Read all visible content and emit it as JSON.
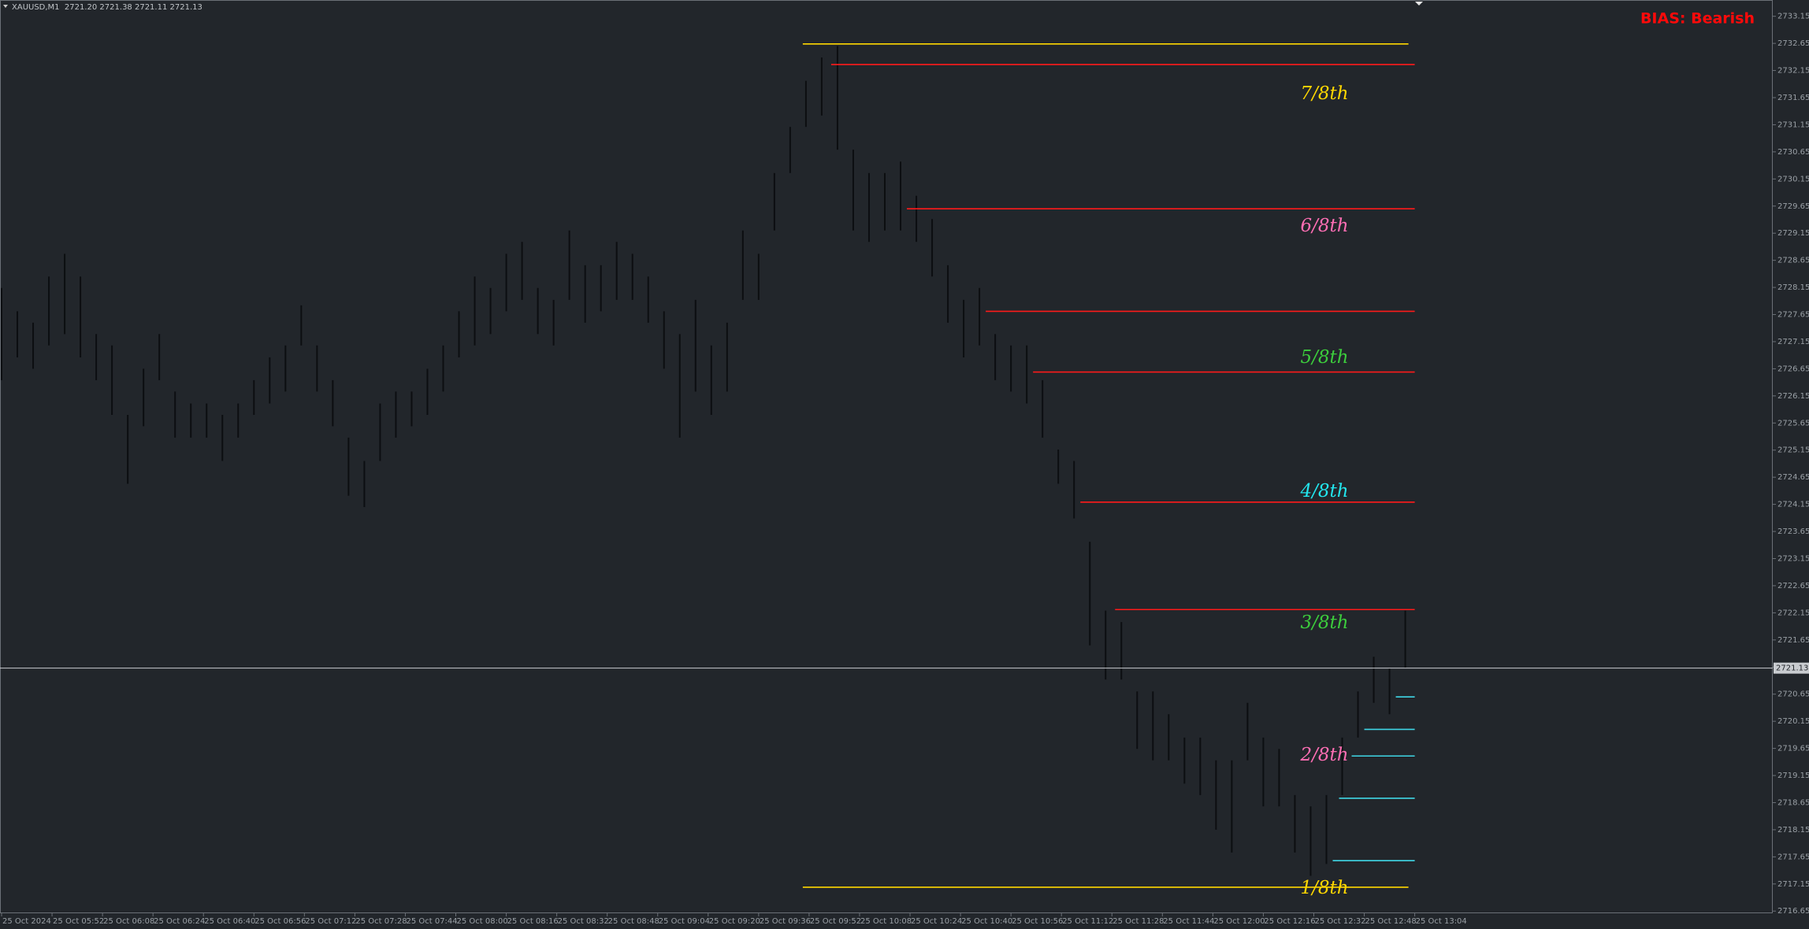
{
  "chart_data": {
    "type": "hilo",
    "header": "XAUUSD,M1  2721.20 2721.38 2721.11 2721.13",
    "annotation": "BIAS: Bearish",
    "annotation_color": "#ff0a0a",
    "bar_color": "#0c0e11",
    "x": [
      "05:36",
      "05:41",
      "05:46",
      "05:51",
      "05:56",
      "06:01",
      "06:06",
      "06:11",
      "06:16",
      "06:21",
      "06:26",
      "06:31",
      "06:36",
      "06:41",
      "06:46",
      "06:51",
      "06:56",
      "07:01",
      "07:06",
      "07:11",
      "07:16",
      "07:21",
      "07:26",
      "07:31",
      "07:36",
      "07:41",
      "07:46",
      "07:51",
      "07:56",
      "08:01",
      "08:06",
      "08:11",
      "08:16",
      "08:21",
      "08:26",
      "08:31",
      "08:36",
      "08:41",
      "08:46",
      "08:51",
      "08:56",
      "09:01",
      "09:06",
      "09:11",
      "09:16",
      "09:21",
      "09:26",
      "09:31",
      "09:36",
      "09:41",
      "09:46",
      "09:51",
      "09:56",
      "10:01",
      "10:06",
      "10:11",
      "10:16",
      "10:21",
      "10:26",
      "10:31",
      "10:36",
      "10:41",
      "10:46",
      "10:51",
      "10:56",
      "11:01",
      "11:06",
      "11:11",
      "11:16",
      "11:21",
      "11:26",
      "11:31",
      "11:36",
      "11:41",
      "11:46",
      "11:51",
      "11:56",
      "12:01",
      "12:06",
      "12:11",
      "12:16",
      "12:21",
      "12:26",
      "12:31",
      "12:36",
      "12:41",
      "12:46",
      "12:51",
      "12:56",
      "13:01"
    ],
    "high": [
      2728.14,
      2727.71,
      2727.5,
      2728.35,
      2728.77,
      2728.35,
      2727.29,
      2727.08,
      2725.8,
      2726.65,
      2727.29,
      2726.23,
      2726.01,
      2726.01,
      2725.8,
      2726.01,
      2726.44,
      2726.86,
      2727.08,
      2727.82,
      2727.08,
      2726.44,
      2725.38,
      2724.95,
      2726.01,
      2726.23,
      2726.23,
      2726.65,
      2727.08,
      2727.71,
      2728.35,
      2728.14,
      2728.77,
      2728.99,
      2728.14,
      2727.92,
      2729.2,
      2728.56,
      2728.56,
      2728.99,
      2728.77,
      2728.35,
      2727.71,
      2727.29,
      2727.92,
      2727.08,
      2727.5,
      2729.2,
      2728.77,
      2730.26,
      2731.11,
      2731.96,
      2732.39,
      2732.6,
      2730.69,
      2730.26,
      2730.26,
      2730.47,
      2729.84,
      2729.41,
      2728.56,
      2727.92,
      2728.14,
      2727.29,
      2727.08,
      2727.08,
      2726.44,
      2725.16,
      2724.95,
      2723.46,
      2722.19,
      2721.98,
      2720.7,
      2720.7,
      2720.28,
      2719.85,
      2719.85,
      2719.43,
      2719.43,
      2720.49,
      2719.85,
      2719.64,
      2718.79,
      2718.58,
      2718.79,
      2719.85,
      2720.7,
      2721.34,
      2721.13,
      2722.19
    ],
    "low": [
      2726.44,
      2726.86,
      2726.65,
      2727.08,
      2727.29,
      2726.86,
      2726.44,
      2725.8,
      2724.53,
      2725.59,
      2726.44,
      2725.38,
      2725.38,
      2725.38,
      2724.95,
      2725.38,
      2725.8,
      2726.01,
      2726.23,
      2727.08,
      2726.23,
      2725.59,
      2724.31,
      2724.1,
      2724.95,
      2725.38,
      2725.59,
      2725.8,
      2726.23,
      2726.86,
      2727.08,
      2727.29,
      2727.71,
      2727.92,
      2727.29,
      2727.08,
      2727.92,
      2727.5,
      2727.71,
      2727.92,
      2727.92,
      2727.5,
      2726.65,
      2725.38,
      2726.23,
      2725.8,
      2726.23,
      2727.92,
      2727.92,
      2729.2,
      2730.26,
      2731.11,
      2731.32,
      2730.69,
      2729.2,
      2728.99,
      2729.2,
      2729.2,
      2728.99,
      2728.35,
      2727.5,
      2726.86,
      2727.08,
      2726.44,
      2726.23,
      2726.01,
      2725.38,
      2724.53,
      2723.89,
      2721.55,
      2720.92,
      2720.92,
      2719.64,
      2719.43,
      2719.43,
      2719.0,
      2718.79,
      2718.15,
      2717.73,
      2719.43,
      2718.58,
      2718.58,
      2717.73,
      2717.3,
      2717.52,
      2718.79,
      2719.85,
      2720.49,
      2720.28,
      2721.13
    ],
    "current_price": 2721.13,
    "levels": [
      {
        "price": 2732.64,
        "color": "#ffd700",
        "start": "09:50",
        "end": "13:02"
      },
      {
        "price": 2732.26,
        "color": "#ff1a1a",
        "start": "09:59",
        "end": "13:04"
      },
      {
        "price": 2729.6,
        "color": "#ff1a1a",
        "start": "10:23",
        "end": "13:04"
      },
      {
        "price": 2727.71,
        "color": "#ff1a1a",
        "start": "10:48",
        "end": "13:04"
      },
      {
        "price": 2726.59,
        "color": "#ff1a1a",
        "start": "11:03",
        "end": "13:04"
      },
      {
        "price": 2724.19,
        "color": "#ff1a1a",
        "start": "11:18",
        "end": "13:04"
      },
      {
        "price": 2722.21,
        "color": "#ff1a1a",
        "start": "11:29",
        "end": "13:04"
      },
      {
        "price": 2720.6,
        "color": "#3fd6e6",
        "start": "12:58",
        "end": "13:04"
      },
      {
        "price": 2720.0,
        "color": "#3fd6e6",
        "start": "12:48",
        "end": "13:04"
      },
      {
        "price": 2719.51,
        "color": "#3fd6e6",
        "start": "12:44",
        "end": "13:04"
      },
      {
        "price": 2718.73,
        "color": "#3fd6e6",
        "start": "12:40",
        "end": "13:04"
      },
      {
        "price": 2717.58,
        "color": "#3fd6e6",
        "start": "12:38",
        "end": "13:04"
      },
      {
        "price": 2717.09,
        "color": "#ffd700",
        "start": "09:50",
        "end": "13:02"
      }
    ],
    "fractions": [
      {
        "label": "7/8th",
        "color": "#ffd700"
      },
      {
        "label": "6/8th",
        "color": "#ff6eb4"
      },
      {
        "label": "5/8th",
        "color": "#3ccc3c"
      },
      {
        "label": "4/8th",
        "color": "#22e6ee"
      },
      {
        "label": "3/8th",
        "color": "#3ccc3c"
      },
      {
        "label": "2/8th",
        "color": "#ff6eb4"
      },
      {
        "label": "1/8th",
        "color": "#ffd700"
      }
    ],
    "xlim": [
      "05:36",
      "14:58"
    ],
    "xticks": [
      {
        "value": "05:36",
        "label": "25 Oct 2024"
      },
      {
        "value": "05:52",
        "label": "25 Oct 05:52"
      },
      {
        "value": "06:08",
        "label": "25 Oct 06:08"
      },
      {
        "value": "06:24",
        "label": "25 Oct 06:24"
      },
      {
        "value": "06:40",
        "label": "25 Oct 06:40"
      },
      {
        "value": "06:56",
        "label": "25 Oct 06:56"
      },
      {
        "value": "07:12",
        "label": "25 Oct 07:12"
      },
      {
        "value": "07:28",
        "label": "25 Oct 07:28"
      },
      {
        "value": "07:44",
        "label": "25 Oct 07:44"
      },
      {
        "value": "08:00",
        "label": "25 Oct 08:00"
      },
      {
        "value": "08:16",
        "label": "25 Oct 08:16"
      },
      {
        "value": "08:32",
        "label": "25 Oct 08:32"
      },
      {
        "value": "08:48",
        "label": "25 Oct 08:48"
      },
      {
        "value": "09:04",
        "label": "25 Oct 09:04"
      },
      {
        "value": "09:20",
        "label": "25 Oct 09:20"
      },
      {
        "value": "09:36",
        "label": "25 Oct 09:36"
      },
      {
        "value": "09:52",
        "label": "25 Oct 09:52"
      },
      {
        "value": "10:08",
        "label": "25 Oct 10:08"
      },
      {
        "value": "10:24",
        "label": "25 Oct 10:24"
      },
      {
        "value": "10:40",
        "label": "25 Oct 10:40"
      },
      {
        "value": "10:56",
        "label": "25 Oct 10:56"
      },
      {
        "value": "11:12",
        "label": "25 Oct 11:12"
      },
      {
        "value": "11:28",
        "label": "25 Oct 11:28"
      },
      {
        "value": "11:44",
        "label": "25 Oct 11:44"
      },
      {
        "value": "12:00",
        "label": "25 Oct 12:00"
      },
      {
        "value": "12:16",
        "label": "25 Oct 12:16"
      },
      {
        "value": "12:32",
        "label": "25 Oct 12:32"
      },
      {
        "value": "12:48",
        "label": "25 Oct 12:48"
      },
      {
        "value": "13:04",
        "label": "25 Oct 13:04"
      }
    ],
    "ylim": [
      2716.61,
      2733.45
    ],
    "yticks": [
      2716.65,
      2717.15,
      2717.65,
      2718.15,
      2718.65,
      2719.15,
      2719.65,
      2720.15,
      2720.65,
      2721.15,
      2721.65,
      2722.15,
      2722.65,
      2723.15,
      2723.65,
      2724.15,
      2724.65,
      2725.15,
      2725.65,
      2726.15,
      2726.65,
      2727.15,
      2727.65,
      2728.15,
      2728.65,
      2729.15,
      2729.65,
      2730.15,
      2730.65,
      2731.15,
      2731.65,
      2732.15,
      2732.65,
      2733.15
    ],
    "grid": false
  }
}
